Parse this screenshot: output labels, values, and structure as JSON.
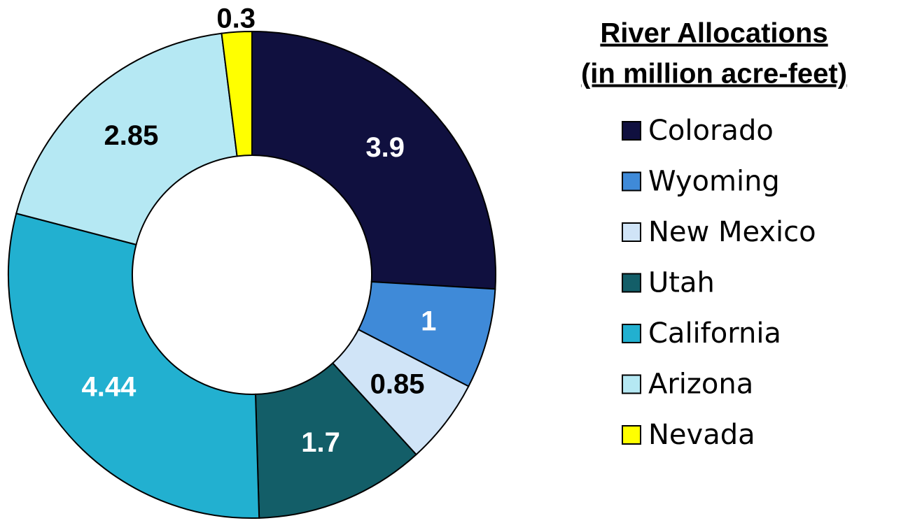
{
  "chart_data": {
    "type": "donut",
    "title": "River Allocations",
    "subtitle": "(in million acre-feet)",
    "categories": [
      "Colorado",
      "Wyoming",
      "New Mexico",
      "Utah",
      "California",
      "Arizona",
      "Nevada"
    ],
    "values": [
      3.9,
      1,
      0.85,
      1.7,
      4.44,
      2.85,
      0.3
    ],
    "colors": [
      "#10103f",
      "#3f8ad8",
      "#d0e4f7",
      "#135e68",
      "#22b0d0",
      "#b5e8f3",
      "#ffff00"
    ],
    "legend": "right"
  }
}
